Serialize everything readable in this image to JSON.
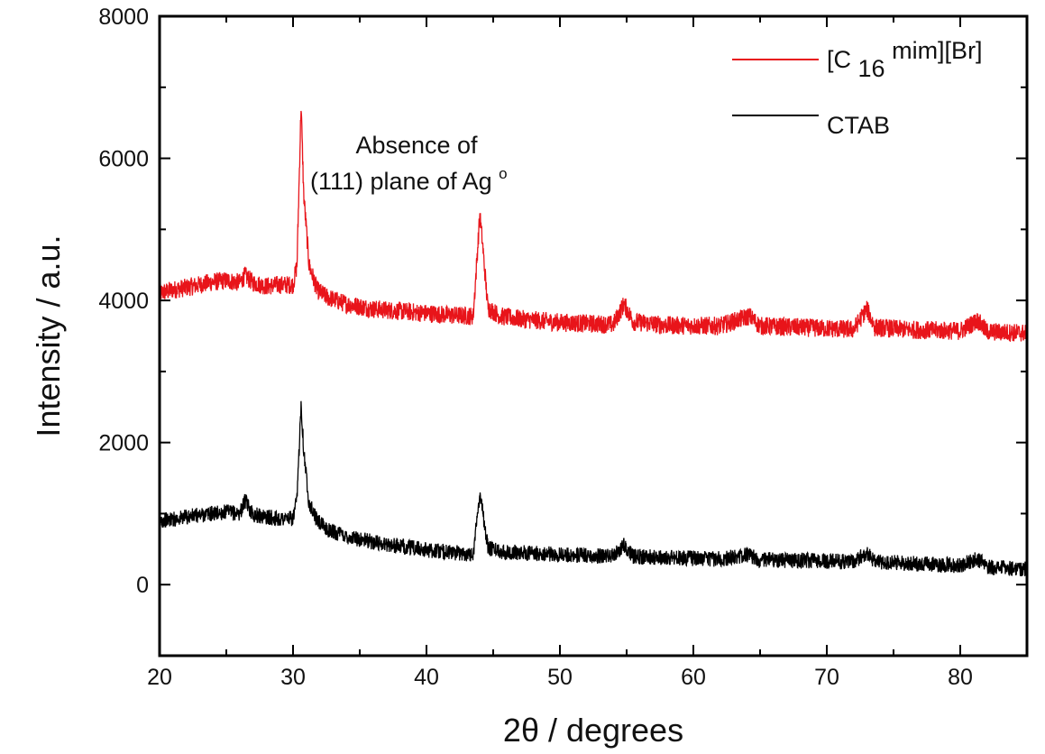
{
  "chart_data": {
    "type": "line",
    "title": "",
    "xlabel": "2θ / degrees",
    "ylabel": "Intensity / a.u.",
    "xlim": [
      20,
      85
    ],
    "ylim": [
      -1000,
      8000
    ],
    "x_ticks": [
      20,
      30,
      40,
      50,
      60,
      70,
      80
    ],
    "y_ticks": [
      0,
      2000,
      4000,
      6000,
      8000
    ],
    "grid": false,
    "legend_position": "top-right",
    "legend": [
      {
        "label_base": "[C",
        "label_sub": "16",
        "label_rest": "mim][Br]",
        "color": "#e8141a"
      },
      {
        "label_base": "CTAB",
        "label_sub": "",
        "label_rest": "",
        "color": "#000000"
      }
    ],
    "annotation": {
      "line1": "Absence of",
      "line2": "(111) plane of Ag",
      "sup": "o"
    },
    "series": [
      {
        "name": "[C16mim][Br]",
        "color": "#e8141a",
        "x": [
          20,
          21,
          22,
          23,
          24,
          25,
          26,
          26.4,
          27,
          28,
          29,
          30,
          30.3,
          30.6,
          30.8,
          31.2,
          31.8,
          32.5,
          34,
          36,
          38,
          40,
          42,
          43.5,
          44.0,
          44.2,
          44.6,
          45.5,
          47,
          50,
          54,
          54.8,
          55.5,
          58,
          62,
          64.2,
          65,
          68,
          72,
          73.0,
          73.6,
          76,
          80,
          81.3,
          82,
          85
        ],
        "y": [
          4100,
          4150,
          4180,
          4220,
          4260,
          4280,
          4250,
          4350,
          4250,
          4200,
          4220,
          4220,
          4500,
          6750,
          5500,
          4500,
          4150,
          4050,
          3950,
          3880,
          3850,
          3820,
          3790,
          3780,
          5200,
          4800,
          3900,
          3780,
          3740,
          3690,
          3660,
          3950,
          3700,
          3650,
          3640,
          3780,
          3640,
          3620,
          3590,
          3880,
          3620,
          3590,
          3570,
          3720,
          3560,
          3540
        ]
      },
      {
        "name": "CTAB",
        "color": "#000000",
        "x": [
          20,
          21,
          22,
          23,
          24,
          25,
          26,
          26.4,
          27,
          28,
          29,
          30,
          30.3,
          30.6,
          30.8,
          31.2,
          31.8,
          32.5,
          34,
          36,
          38,
          40,
          42,
          43.5,
          44.0,
          44.2,
          44.6,
          45.5,
          47,
          50,
          54,
          54.8,
          55.5,
          58,
          62,
          64.2,
          65,
          68,
          72,
          73.0,
          73.6,
          76,
          80,
          81.3,
          82,
          85
        ],
        "y": [
          900,
          920,
          950,
          980,
          1000,
          1020,
          1000,
          1180,
          990,
          950,
          930,
          930,
          1200,
          2550,
          1900,
          1150,
          900,
          780,
          680,
          600,
          540,
          490,
          450,
          430,
          1300,
          1050,
          520,
          470,
          450,
          420,
          400,
          560,
          400,
          380,
          360,
          420,
          350,
          340,
          320,
          450,
          320,
          300,
          270,
          360,
          250,
          220
        ]
      }
    ]
  }
}
